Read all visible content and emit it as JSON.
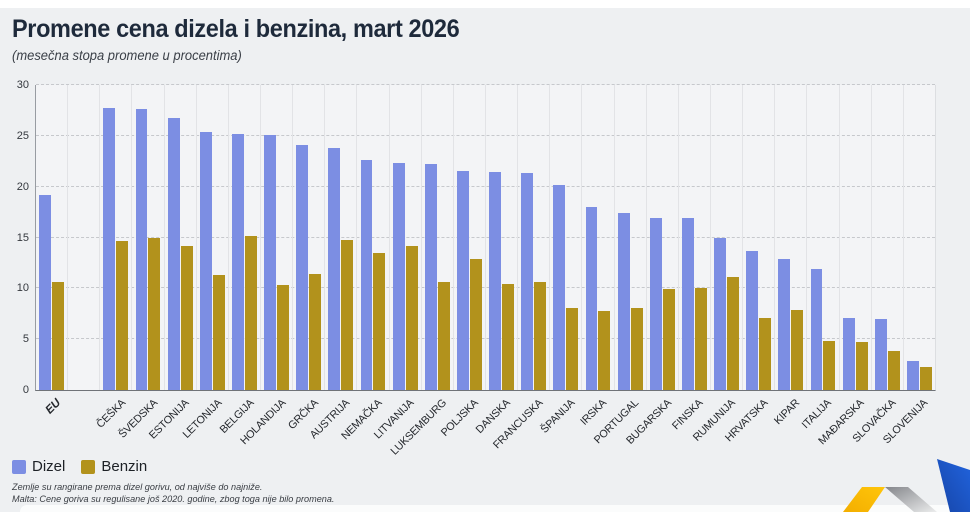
{
  "header": {
    "title": "Promene cena dizela i benzina, mart 2026",
    "subtitle": "(mesečna stopa promene u procentima)"
  },
  "legend": {
    "items": [
      {
        "label": "Dizel",
        "color": "#7c8ee3"
      },
      {
        "label": "Benzin",
        "color": "#b2921c"
      }
    ]
  },
  "footnotes": [
    "Zemlje su rangirane prema dizel gorivu, od najviše do najniže.",
    "Malta: Cene goriva su regulisane još 2020. godine, zbog toga nije bilo promena."
  ],
  "chart_data": {
    "type": "bar",
    "title": "Promene cena dizela i benzina, mart 2026",
    "subtitle": "(mesečna stopa promene u procentima)",
    "categories": [
      "EU",
      "ČEŠKA",
      "ŠVEDSKA",
      "ESTONIJA",
      "LETONIJA",
      "BELGIJA",
      "HOLANDIJA",
      "GRČKA",
      "AUSTRIJA",
      "NEMAČKA",
      "LITVANIJA",
      "LUKSEMBURG",
      "POLJSKA",
      "DANSKA",
      "FRANCUSKA",
      "ŠPANIJA",
      "IRSKA",
      "PORTUGAL",
      "BUGARSKA",
      "FINSKA",
      "RUMUNIJA",
      "HRVATSKA",
      "KIPAR",
      "ITALIJA",
      "MAĐARSKA",
      "SLOVAČKA",
      "SLOVENIJA"
    ],
    "series": [
      {
        "name": "Dizel",
        "color": "#7c8ee3",
        "values": [
          19.2,
          27.7,
          27.6,
          26.8,
          25.4,
          25.2,
          25.1,
          24.1,
          23.8,
          22.6,
          22.3,
          22.2,
          21.5,
          21.4,
          21.3,
          20.2,
          18.0,
          17.4,
          16.9,
          16.9,
          15.0,
          13.7,
          12.9,
          11.9,
          7.1,
          7.0,
          2.9
        ]
      },
      {
        "name": "Benzin",
        "color": "#b2921c",
        "values": [
          10.6,
          14.7,
          15.0,
          14.2,
          11.3,
          15.1,
          10.3,
          11.4,
          14.8,
          13.5,
          14.2,
          10.6,
          12.9,
          10.4,
          10.6,
          8.1,
          7.8,
          8.1,
          9.9,
          10.0,
          11.1,
          7.1,
          7.9,
          4.8,
          4.7,
          3.8,
          2.3
        ]
      }
    ],
    "ylim": [
      0,
      30
    ],
    "yticks": [
      0,
      5,
      10,
      15,
      20,
      25,
      30
    ],
    "xlabel": "",
    "ylabel": "",
    "grid": true,
    "legend_position": "bottom-left",
    "gap_after_first": true,
    "highlight_category": "EU"
  },
  "logo": {
    "name": "zigzag-check-logo",
    "colors": {
      "yellow": "#ffc50a",
      "yellow_dark": "#f3ae00",
      "gray_dark": "#84868b",
      "gray_light": "#eceded",
      "blue": "#2163dd",
      "blue_dark": "#1645a8"
    }
  }
}
